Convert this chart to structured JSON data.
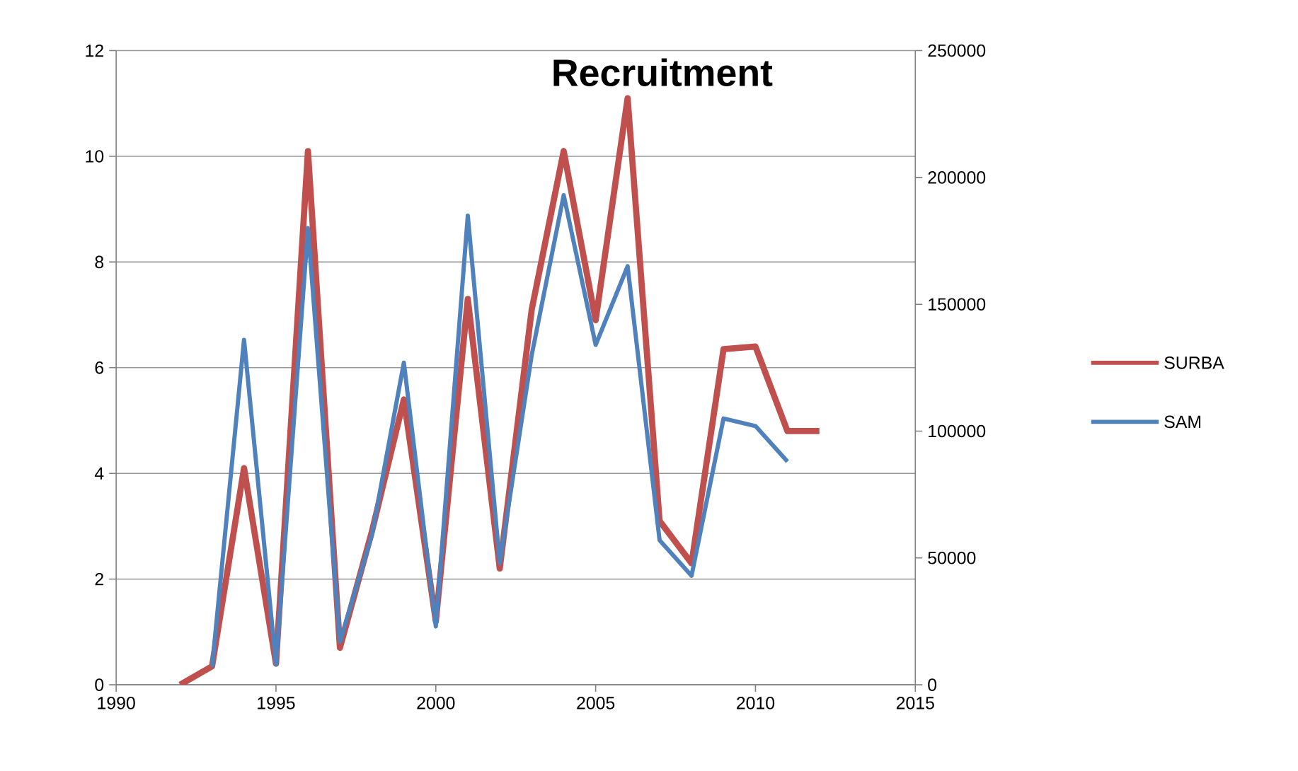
{
  "chart_data": {
    "type": "line",
    "title": "Recruitment",
    "x": [
      1992,
      1993,
      1994,
      1995,
      1996,
      1997,
      1998,
      1999,
      2000,
      2001,
      2002,
      2003,
      2004,
      2005,
      2006,
      2007,
      2008,
      2009,
      2010,
      2011,
      2012
    ],
    "series": [
      {
        "name": "SURBA",
        "color": "#c0504d",
        "values": [
          0,
          0.35,
          4.1,
          0.4,
          10.1,
          0.7,
          2.9,
          5.4,
          1.2,
          7.3,
          2.2,
          7.1,
          10.1,
          6.9,
          11.1,
          3.1,
          2.3,
          6.35,
          6.4,
          4.8,
          4.8
        ]
      },
      {
        "name": "SAM",
        "color": "#4f81bd",
        "axis": "y2",
        "values": [
          null,
          7000,
          136000,
          8000,
          180000,
          17000,
          59000,
          127000,
          23000,
          185000,
          48000,
          130000,
          193000,
          134000,
          165000,
          57000,
          43000,
          105000,
          102000,
          88000,
          null
        ]
      }
    ],
    "xlim": [
      1990,
      2015
    ],
    "xticks": [
      1990,
      1995,
      2000,
      2005,
      2010,
      2015
    ],
    "ylim": [
      0,
      12
    ],
    "yticks": [
      0,
      2,
      4,
      6,
      8,
      10,
      12
    ],
    "y2lim": [
      0,
      250000
    ],
    "y2ticks": [
      0,
      50000,
      100000,
      150000,
      200000,
      250000
    ],
    "grid": "y",
    "legend": "right"
  }
}
